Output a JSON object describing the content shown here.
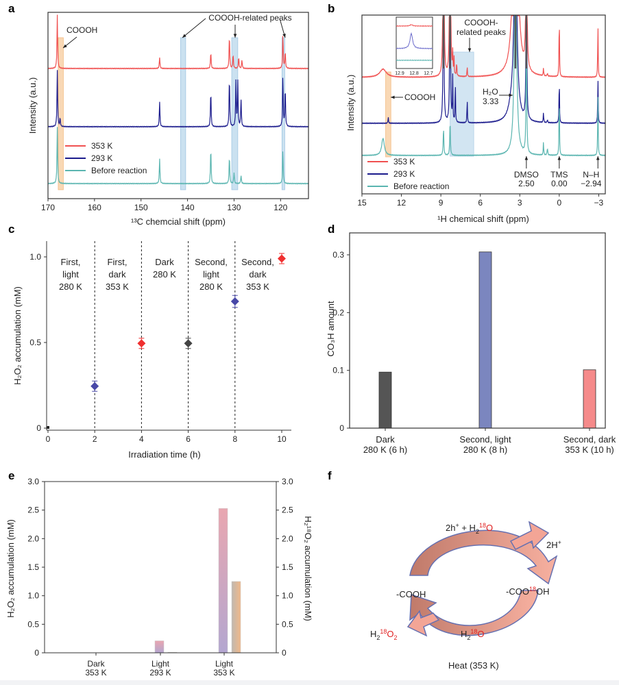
{
  "colors": {
    "red": "#f05050",
    "blue": "#1a1a8c",
    "teal": "#5ab5b0",
    "orange_band": "#f7c896",
    "blue_band": "#b5d5ea",
    "dark_bar": "#555555",
    "blue_bar": "#7b86bf",
    "red_bar": "#f58a8a",
    "e_h2o2": "#b39ac7",
    "e_h218o2": "#e8b38c",
    "e_left_axis": "#a0309a",
    "e_right_axis": "#f08a3a",
    "arrow_fill": "#f3a596",
    "arrow_dark": "#c07a6a"
  },
  "chart_data": [
    {
      "panel": "a",
      "type": "line",
      "xlabel": "¹³C chemcial shift (ppm)",
      "ylabel": "Intensity (a.u.)",
      "xlim": [
        170,
        114
      ],
      "xticks": [
        170,
        160,
        150,
        140,
        130,
        120
      ],
      "x_reversed": true,
      "legend": {
        "placement": "bottom-left",
        "entries": [
          "353 K",
          "293 K",
          "Before reaction"
        ]
      },
      "annotations": {
        "coooh": "COOOH",
        "related": "COOOH-related peaks"
      },
      "highlight_bands": [
        {
          "color": "orange",
          "range": [
            167.8,
            166.7
          ]
        },
        {
          "color": "blue",
          "range": [
            141.5,
            140.4
          ]
        },
        {
          "color": "blue",
          "range": [
            130.5,
            129.2
          ]
        },
        {
          "color": "blue",
          "range": [
            119.7,
            119.1
          ]
        }
      ],
      "series": [
        {
          "name": "353 K",
          "peaks": [
            [
              168,
              0.95
            ],
            [
              146,
              0.2
            ],
            [
              135,
              0.3
            ],
            [
              131,
              0.6
            ],
            [
              130.2,
              0.25
            ],
            [
              129,
              0.2
            ],
            [
              128.3,
              0.15
            ],
            [
              119.5,
              0.6
            ],
            [
              119,
              0.3
            ]
          ]
        },
        {
          "name": "293 K",
          "peaks": [
            [
              168,
              1.0
            ],
            [
              167.4,
              0.15
            ],
            [
              146,
              0.45
            ],
            [
              135,
              0.65
            ],
            [
              131,
              0.9
            ],
            [
              129.6,
              0.8
            ],
            [
              129.2,
              0.8
            ],
            [
              128.5,
              0.5
            ],
            [
              119.5,
              0.9
            ],
            [
              119,
              0.7
            ]
          ]
        },
        {
          "name": "Before reaction",
          "peaks": [
            [
              168,
              1.0
            ],
            [
              146,
              0.45
            ],
            [
              135,
              0.65
            ],
            [
              131,
              0.5
            ],
            [
              130,
              0.2
            ],
            [
              128.5,
              0.15
            ],
            [
              119.5,
              0.6
            ]
          ]
        }
      ]
    },
    {
      "panel": "b",
      "type": "line",
      "xlabel": "¹H chemical shift (ppm)",
      "ylabel": "Intensity (a.u.)",
      "xlim": [
        15,
        -3.5
      ],
      "xticks": [
        15,
        12,
        9,
        6,
        3,
        0,
        -3
      ],
      "x_reversed": true,
      "legend": {
        "placement": "bottom-left",
        "entries": [
          "353 K",
          "293 K",
          "Before reaction"
        ]
      },
      "annotations": {
        "coooh": "COOOH",
        "related_1": "COOOH-",
        "related_2": "related peaks",
        "h2o_1": "H₂O",
        "h2o_2": "3.33",
        "dmso_1": "DMSO",
        "dmso_2": "2.50",
        "tms_1": "TMS",
        "tms_2": "0.00",
        "nh_1": "N–H",
        "nh_2": "−2.94"
      },
      "inset": {
        "xticks": [
          "12.9",
          "12.8",
          "12.7"
        ]
      },
      "series": [
        {
          "name": "353 K",
          "peaks": [
            [
              13.4,
              0.12,
              0.3
            ],
            [
              8.8,
              5,
              0.03
            ],
            [
              8.3,
              5,
              0.03
            ],
            [
              8.1,
              0.3,
              0.02
            ],
            [
              8.0,
              0.25,
              0.02
            ],
            [
              7.8,
              0.2,
              0.02
            ],
            [
              7.0,
              0.15,
              0.02
            ],
            [
              3.33,
              5,
              0.15
            ],
            [
              2.5,
              5,
              0.03
            ],
            [
              1.2,
              0.12,
              0.02
            ],
            [
              0.9,
              0.05,
              0.02
            ],
            [
              0,
              0.9,
              0.02
            ],
            [
              -2.94,
              0.75,
              0.02
            ]
          ]
        },
        {
          "name": "293 K",
          "peaks": [
            [
              13,
              0.1,
              0.02
            ],
            [
              8.8,
              3,
              0.03
            ],
            [
              8.3,
              3,
              0.03
            ],
            [
              8.1,
              0.65,
              0.02
            ],
            [
              7.9,
              0.6,
              0.02
            ],
            [
              7.0,
              0.35,
              0.02
            ],
            [
              3.33,
              3,
              0.12
            ],
            [
              3.6,
              0.2,
              0.3
            ],
            [
              2.5,
              3,
              0.03
            ],
            [
              1.2,
              0.15,
              0.02
            ],
            [
              0.9,
              0.05,
              0.02
            ],
            [
              0,
              0.65,
              0.02
            ],
            [
              -2.94,
              0.65,
              0.02
            ]
          ]
        },
        {
          "name": "Before reaction",
          "peaks": [
            [
              13.4,
              0.25,
              0.12
            ],
            [
              8.8,
              0.4,
              0.03
            ],
            [
              8.3,
              0.5,
              0.03
            ],
            [
              3.33,
              3,
              0.1
            ],
            [
              2.5,
              2,
              0.03
            ],
            [
              1.2,
              0.2,
              0.02
            ],
            [
              0.9,
              0.1,
              0.03
            ],
            [
              0,
              0.9,
              0.02
            ],
            [
              -2.94,
              0.9,
              0.02
            ]
          ]
        }
      ]
    },
    {
      "panel": "c",
      "type": "scatter",
      "xlabel": "Irradiation time (h)",
      "ylabel": "H₂O₂ accumulation (mM)",
      "xlim": [
        0,
        10.4
      ],
      "ylim": [
        0,
        1.05
      ],
      "xticks": [
        0,
        2,
        4,
        6,
        8,
        10
      ],
      "yticks": [
        "0",
        "0.5",
        "1.0"
      ],
      "points": [
        {
          "x": 0,
          "y": 0,
          "color": "black"
        },
        {
          "x": 2,
          "y": 0.245,
          "err": 0.03,
          "color": "blue"
        },
        {
          "x": 4,
          "y": 0.495,
          "err": 0.03,
          "color": "red"
        },
        {
          "x": 6,
          "y": 0.495,
          "err": 0.03,
          "color": "black"
        },
        {
          "x": 8,
          "y": 0.74,
          "err": 0.035,
          "color": "blue"
        },
        {
          "x": 10,
          "y": 0.99,
          "err": 0.03,
          "color": "red"
        }
      ],
      "dividers": [
        2,
        4,
        6,
        8
      ],
      "region_labels": [
        [
          "First,",
          "light",
          "280 K"
        ],
        [
          "First,",
          "dark",
          "353 K"
        ],
        [
          "Dark",
          "280 K"
        ],
        [
          "Second,",
          "light",
          "280 K"
        ],
        [
          "Second,",
          "dark",
          "353 K"
        ]
      ]
    },
    {
      "panel": "d",
      "type": "bar",
      "ylabel": "CO₃H amount",
      "ylim": [
        0,
        0.32
      ],
      "yticks": [
        "0",
        "0.1",
        "0.2",
        "0.3"
      ],
      "categories": [
        [
          "Dark",
          "280 K (6 h)"
        ],
        [
          "Second, light",
          "280 K (8 h)"
        ],
        [
          "Second, dark",
          "353 K (10 h)"
        ]
      ],
      "values": [
        0.097,
        0.305,
        0.101
      ]
    },
    {
      "panel": "e",
      "type": "bar",
      "ylabel": "H₂O₂ accumulation (mM)",
      "ylabel_right": "H₂¹⁸O₂ accumulation (mM)",
      "ylim": [
        0,
        3.0
      ],
      "yticks": [
        "0",
        "0.5",
        "1.0",
        "1.5",
        "2.0",
        "2.5",
        "3.0"
      ],
      "categories": [
        [
          "Dark",
          "353 K"
        ],
        [
          "Light",
          "293 K"
        ],
        [
          "Light",
          "353 K"
        ]
      ],
      "series": [
        {
          "name": "H₂O₂",
          "values": [
            0,
            0.21,
            2.53
          ]
        },
        {
          "name": "H₂¹⁸O₂",
          "values": [
            0,
            0.01,
            1.25
          ]
        }
      ]
    }
  ],
  "diagram_f": {
    "top_a": "2h",
    "top_sup": "+",
    "top_b": " + H",
    "top_sub": "2",
    "top_c": "18",
    "top_d": "O",
    "right_top": "2H",
    "right_top_sup": "+",
    "left": "-COOH",
    "right_a": "-COO",
    "right_b": "18",
    "right_c": "OH",
    "bl_a": "H",
    "bl_sub": "2",
    "bl_b": "18",
    "bl_c": "O",
    "bl_sub2": "2",
    "mid_a": "H",
    "mid_sub": "2",
    "mid_b": "18",
    "mid_c": "O",
    "bottom": "Heat (353 K)"
  },
  "panel_labels": [
    "a",
    "b",
    "c",
    "d",
    "e",
    "f"
  ]
}
